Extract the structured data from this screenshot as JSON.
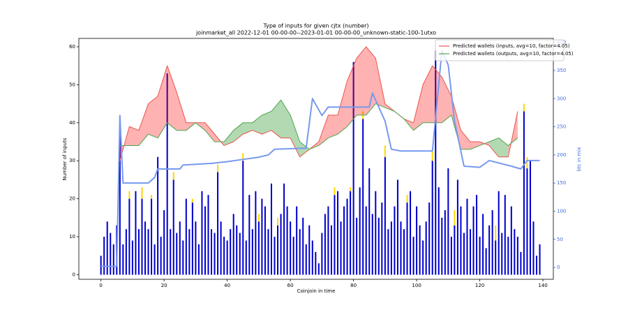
{
  "chart_data": {
    "type": "bar",
    "title": "Type of inputs for given cjtx (number)",
    "subtitle": "joinmarket_all 2022-12-01 00-00-00--2023-01-01 00-00-00_unknown-static-100-1utxo",
    "x_label": "Coinjoin in time",
    "y_label": "Number of inputs",
    "y2_label": "btc in mix",
    "xlim": [
      -7,
      143.3
    ],
    "xticks": [
      0,
      20,
      40,
      60,
      80,
      100,
      120,
      140
    ],
    "ylim": [
      -1.2,
      62.2
    ],
    "yticks": [
      0,
      10,
      20,
      30,
      40,
      50,
      60
    ],
    "y2lim": [
      -21,
      407
    ],
    "y2ticks": [
      0,
      50,
      100,
      150,
      200,
      250,
      300,
      350,
      400
    ],
    "y2_color": "#4169e1",
    "legend": "upper right",
    "bars": [
      {
        "color": "#0000cc",
        "x": [
          0,
          1,
          2,
          3,
          4,
          5,
          6,
          7,
          8,
          9,
          10,
          11,
          12,
          13,
          14,
          15,
          16,
          17,
          18,
          19,
          20,
          21,
          22,
          23,
          24,
          25,
          26,
          27,
          28,
          29,
          30,
          31,
          32,
          33,
          34,
          35,
          36,
          37,
          38,
          39,
          40,
          41,
          42,
          43,
          44,
          45,
          46,
          47,
          48,
          49,
          50,
          51,
          52,
          53,
          54,
          55,
          56,
          57,
          58,
          59,
          60,
          61,
          62,
          63,
          64,
          65,
          66,
          67,
          68,
          69,
          70,
          71,
          72,
          73,
          74,
          75,
          76,
          77,
          78,
          79,
          80,
          81,
          82,
          83,
          84,
          85,
          86,
          87,
          88,
          89,
          90,
          91,
          92,
          93,
          94,
          95,
          96,
          97,
          98,
          99,
          100,
          101,
          102,
          103,
          104,
          105,
          106,
          107,
          108,
          109,
          110,
          111,
          112,
          113,
          114,
          115,
          116,
          117,
          118,
          119,
          120,
          121,
          122,
          123,
          124,
          125,
          126,
          127,
          128,
          129,
          130,
          131,
          132,
          133,
          134,
          135,
          136,
          137,
          138,
          139
        ],
        "values": [
          5,
          10,
          14,
          11,
          8,
          13,
          38,
          8,
          12,
          20,
          9,
          22,
          12,
          20,
          14,
          12,
          20,
          8,
          31,
          10,
          17,
          53,
          12,
          25,
          11,
          14,
          9,
          20,
          12,
          19,
          14,
          8,
          22,
          18,
          21,
          12,
          11,
          27,
          14,
          10,
          9,
          12,
          16,
          13,
          11,
          30,
          9,
          21,
          12,
          22,
          14,
          20,
          18,
          12,
          24,
          10,
          13,
          16,
          24,
          18,
          14,
          10,
          18,
          12,
          15,
          8,
          13,
          9,
          6,
          3,
          11,
          16,
          18,
          13,
          21,
          22,
          14,
          18,
          20,
          22,
          56,
          15,
          23,
          41,
          18,
          28,
          16,
          22,
          15,
          19,
          31,
          12,
          14,
          18,
          25,
          14,
          12,
          19,
          22,
          10,
          18,
          13,
          9,
          14,
          19,
          30,
          59,
          23,
          15,
          17,
          28,
          10,
          13,
          25,
          18,
          11,
          20,
          12,
          18,
          21,
          10,
          16,
          7,
          13,
          17,
          9,
          22,
          11,
          21,
          10,
          18,
          12,
          10,
          6,
          43,
          28,
          30,
          14,
          5,
          8
        ]
      },
      {
        "color": "#ffd700",
        "x": [
          9,
          13,
          16,
          23,
          29,
          37,
          45,
          50,
          56,
          74,
          79,
          83,
          90,
          97,
          105,
          112,
          125,
          134,
          135
        ],
        "values": [
          2,
          3,
          1,
          2,
          1,
          2,
          2,
          2,
          2,
          2,
          1,
          2,
          3,
          2,
          3,
          4,
          4,
          2,
          3
        ]
      }
    ],
    "series": [
      {
        "name": "Predicted wallets (inputs, avg=10, factor=4.05)",
        "color": "#e8554e",
        "x": [
          6,
          9,
          12,
          15,
          18,
          21,
          24,
          27,
          30,
          33,
          36,
          39,
          42,
          45,
          48,
          51,
          54,
          57,
          60,
          63,
          66,
          69,
          72,
          75,
          78,
          81,
          84,
          87,
          90,
          93,
          96,
          99,
          102,
          105,
          108,
          111,
          114,
          117,
          120,
          123,
          126,
          129,
          132
        ],
        "values": [
          30,
          39,
          38,
          45,
          47,
          55,
          48,
          40,
          40,
          40,
          37,
          34,
          35,
          37,
          38,
          37,
          38,
          36,
          36,
          31,
          33,
          35,
          42,
          42,
          51,
          57,
          60,
          57,
          45,
          43,
          41,
          40,
          50,
          55,
          52,
          47,
          38,
          35,
          35,
          34,
          31,
          31,
          43
        ]
      },
      {
        "name": "Predicted wallets (outputs, avg=10, factor=4.05)",
        "color": "#4ca64c",
        "x": [
          6,
          9,
          12,
          15,
          18,
          21,
          24,
          27,
          30,
          33,
          36,
          39,
          42,
          45,
          48,
          51,
          54,
          57,
          60,
          63,
          66,
          69,
          72,
          75,
          78,
          81,
          84,
          87,
          90,
          93,
          96,
          99,
          102,
          105,
          108,
          111,
          114,
          117,
          120,
          123,
          126,
          129,
          132
        ],
        "values": [
          34,
          34,
          34,
          37,
          36,
          40,
          38,
          38,
          40,
          38,
          35,
          35,
          38,
          40,
          40,
          42,
          43,
          46,
          42,
          35,
          33,
          34,
          36,
          37,
          39,
          42,
          42,
          45,
          44,
          43,
          41,
          38,
          40,
          40,
          40,
          42,
          33,
          33,
          34,
          35,
          36,
          34,
          36
        ]
      },
      {
        "color": "#7799ee",
        "axis": "y2",
        "x": [
          0,
          5,
          6,
          7,
          10,
          15,
          17,
          18,
          25,
          26,
          35,
          40,
          45,
          50,
          53,
          55,
          65,
          67,
          68,
          70,
          72,
          75,
          85,
          86,
          90,
          92,
          95,
          105,
          108,
          110,
          112,
          115,
          120,
          123,
          130,
          133,
          135,
          139
        ],
        "values": [
          2,
          2,
          270,
          150,
          150,
          150,
          160,
          175,
          175,
          182,
          185,
          188,
          192,
          196,
          200,
          210,
          212,
          300,
          290,
          270,
          285,
          285,
          285,
          310,
          260,
          210,
          207,
          207,
          385,
          360,
          260,
          180,
          178,
          190,
          180,
          175,
          190,
          190
        ]
      }
    ]
  }
}
